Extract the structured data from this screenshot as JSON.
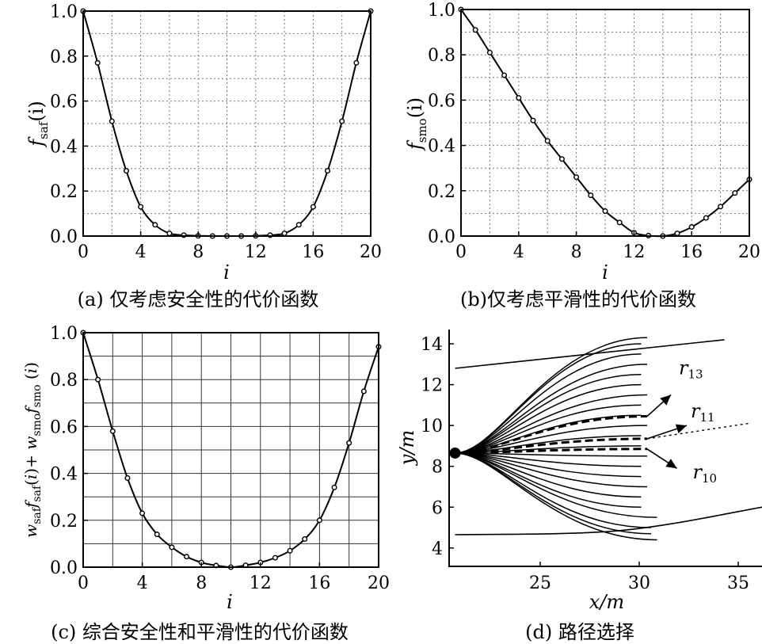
{
  "chart_data": [
    {
      "id": "a",
      "type": "line",
      "caption": "(a) 仅考虑安全性的代价函数",
      "xlabel": "i",
      "ylabel_main": "f",
      "ylabel_sub": "saf",
      "ylabel_tail": "(i)",
      "xlim": [
        0,
        20
      ],
      "ylim": [
        0,
        1.0
      ],
      "xticks": [
        0,
        4,
        8,
        12,
        16,
        20
      ],
      "yticks": [
        0.0,
        0.2,
        0.4,
        0.6,
        0.8,
        1.0
      ],
      "ytick_labels": [
        "0.0",
        "0.2",
        "0.4",
        "0.6",
        "0.8",
        "1.0"
      ],
      "grid": "dotted",
      "x": [
        0,
        1,
        2,
        3,
        4,
        5,
        6,
        7,
        8,
        9,
        10,
        11,
        12,
        13,
        14,
        15,
        16,
        17,
        18,
        19,
        20
      ],
      "y": [
        1.0,
        0.77,
        0.51,
        0.29,
        0.13,
        0.05,
        0.012,
        0.004,
        0.001,
        0.0,
        0.0,
        0.0,
        0.001,
        0.004,
        0.012,
        0.05,
        0.13,
        0.29,
        0.51,
        0.77,
        1.0
      ]
    },
    {
      "id": "b",
      "type": "line",
      "caption": "(b)仅考虑平滑性的代价函数",
      "xlabel": "i",
      "ylabel_main": "f",
      "ylabel_sub": "smo",
      "ylabel_tail": "(i)",
      "xlim": [
        0,
        20
      ],
      "ylim": [
        0,
        1.0
      ],
      "xticks": [
        0,
        4,
        8,
        12,
        16,
        20
      ],
      "yticks": [
        0.0,
        0.2,
        0.4,
        0.6,
        0.8,
        1.0
      ],
      "ytick_labels": [
        "0.0",
        "0.2",
        "0.4",
        "0.6",
        "0.8",
        "1.0"
      ],
      "grid": "dotted",
      "x": [
        0,
        1,
        2,
        3,
        4,
        5,
        6,
        7,
        8,
        9,
        10,
        11,
        12,
        13,
        14,
        15,
        16,
        17,
        18,
        19,
        20
      ],
      "y": [
        1.0,
        0.91,
        0.81,
        0.71,
        0.61,
        0.51,
        0.42,
        0.34,
        0.26,
        0.18,
        0.11,
        0.06,
        0.015,
        0.002,
        0.0,
        0.012,
        0.04,
        0.08,
        0.13,
        0.19,
        0.25
      ]
    },
    {
      "id": "c",
      "type": "line",
      "caption": "(c) 综合安全性和平滑性的代价函数",
      "xlabel": "i",
      "ylabel": "w_saf f_saf(i) + w_smo f_smo(i)",
      "xlim": [
        0,
        20
      ],
      "ylim": [
        0,
        1.0
      ],
      "xticks": [
        0,
        4,
        8,
        12,
        16,
        20
      ],
      "yticks": [
        0.0,
        0.2,
        0.4,
        0.6,
        0.8,
        1.0
      ],
      "ytick_labels": [
        "0.0",
        "0.2",
        "0.4",
        "0.6",
        "0.8",
        "1.0"
      ],
      "grid": "solid",
      "x": [
        0,
        1,
        2,
        3,
        4,
        5,
        6,
        7,
        8,
        9,
        10,
        11,
        12,
        13,
        14,
        15,
        16,
        17,
        18,
        19,
        20
      ],
      "y": [
        1.0,
        0.8,
        0.58,
        0.38,
        0.23,
        0.14,
        0.085,
        0.045,
        0.02,
        0.007,
        0.0,
        0.008,
        0.02,
        0.04,
        0.07,
        0.12,
        0.2,
        0.34,
        0.53,
        0.75,
        0.94
      ]
    },
    {
      "id": "d",
      "type": "line",
      "caption": "(d) 路径选择",
      "xlabel": "x/m",
      "ylabel": "y/m",
      "xlim": [
        20.4,
        36.2
      ],
      "ylim": [
        3.1,
        14.7
      ],
      "xticks": [
        25,
        30,
        35
      ],
      "yticks": [
        4,
        6,
        8,
        10,
        12,
        14
      ],
      "start_point": [
        20.7,
        8.65
      ],
      "lane_top": [
        [
          20.7,
          12.8
        ],
        [
          34.3,
          14.2
        ]
      ],
      "lane_bottom": [
        [
          20.7,
          4.65
        ],
        [
          29.0,
          4.85
        ],
        [
          36.2,
          6.0
        ]
      ],
      "path_start": [
        20.7,
        8.65
      ],
      "path_branch_x": 22.9,
      "path_end_x": 30.1,
      "path_end_y": [
        4.4,
        4.7,
        5.0,
        5.5,
        6.0,
        6.5,
        7.0,
        7.5,
        8.0,
        8.5,
        9.0,
        9.5,
        10.0,
        10.5,
        11.0,
        11.5,
        12.0,
        12.5,
        13.0,
        13.5,
        14.0,
        14.3
      ],
      "selected_paths": [
        {
          "label": "r",
          "sub": "13",
          "end": [
            30.4,
            10.45
          ],
          "arrow_tip": [
            31.6,
            11.5
          ],
          "label_pos": [
            32.0,
            12.5
          ]
        },
        {
          "label": "r",
          "sub": "11",
          "end": [
            30.4,
            9.35
          ],
          "arrow_tip": [
            32.4,
            10.0
          ],
          "label_pos": [
            32.6,
            10.4
          ]
        },
        {
          "label": "r",
          "sub": "10",
          "end": [
            30.4,
            8.85
          ],
          "arrow_tip": [
            31.9,
            7.9
          ],
          "label_pos": [
            32.7,
            7.4
          ]
        }
      ],
      "extension": [
        [
          30.4,
          9.35
        ],
        [
          35.5,
          10.1
        ]
      ]
    }
  ]
}
